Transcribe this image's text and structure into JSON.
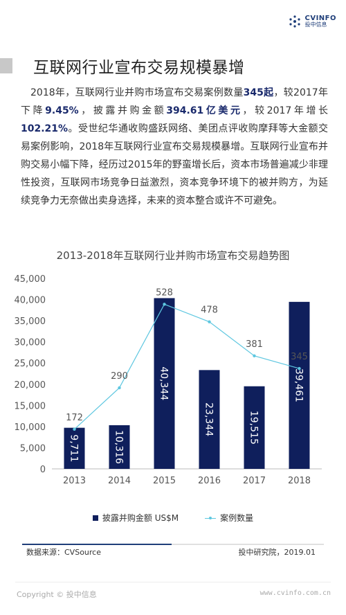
{
  "brand": {
    "name_en": "CVINFO",
    "name_cn": "投中信息"
  },
  "page": {
    "title": "互联网行业宣布交易规模暴增",
    "paragraph": [
      {
        "t": "2018年，互联网行业并购市场宣布交易案例数量",
        "b": false
      },
      {
        "t": "345起",
        "b": true
      },
      {
        "t": "，较2017年下降",
        "b": false
      },
      {
        "t": "9.45%",
        "b": true
      },
      {
        "t": "，披露并购金额",
        "b": false
      },
      {
        "t": "394.61亿美元",
        "b": true
      },
      {
        "t": "，较2017年增长",
        "b": false
      },
      {
        "t": "102.21%",
        "b": true
      },
      {
        "t": "。受世纪华通收购盛跃网络、美团点评收购摩拜等大金额交易案例影响，2018年互联网行业宣布交易规模暴增。互联网行业宣布并购交易小幅下降，经历过2015年的野蛮增长后，资本市场普遍减少非理性投资，互联网市场竞争日益激烈，资本竞争环境下的被并购方，为延续竞争力无奈做出卖身选择，未来的资本整合或许不可避免。",
        "b": false
      }
    ]
  },
  "chart_data": {
    "type": "bar",
    "title": "2013-2018年互联网行业并购市场宣布交易趋势图",
    "categories": [
      "2013",
      "2014",
      "2015",
      "2016",
      "2017",
      "2018"
    ],
    "y_ticks": [
      "0",
      "5,000",
      "10,000",
      "15,000",
      "20,000",
      "25,000",
      "30,000",
      "35,000",
      "40,000",
      "45,000"
    ],
    "ylim": [
      0,
      45000
    ],
    "series": [
      {
        "name": "披露并购金额 US$M",
        "type": "bar",
        "color": "#0f1f5c",
        "values": [
          9711,
          10316,
          40344,
          23344,
          19515,
          39461
        ],
        "labels": [
          "9,711",
          "10,316",
          "40,344",
          "23,344",
          "19,515",
          "39,461"
        ]
      },
      {
        "name": "案例数量",
        "type": "line",
        "color": "#5ec7e0",
        "values": [
          172,
          290,
          528,
          478,
          381,
          345
        ],
        "labels": [
          "172",
          "290",
          "528",
          "478",
          "381",
          "345"
        ]
      }
    ],
    "grid": false,
    "legend": "bottom"
  },
  "footer": {
    "source": "数据来源：CVSource",
    "institute": "投中研究院，2019.01",
    "copyright": "Copyright © 投中信息",
    "url": "www.cvinfo.com.cn"
  }
}
